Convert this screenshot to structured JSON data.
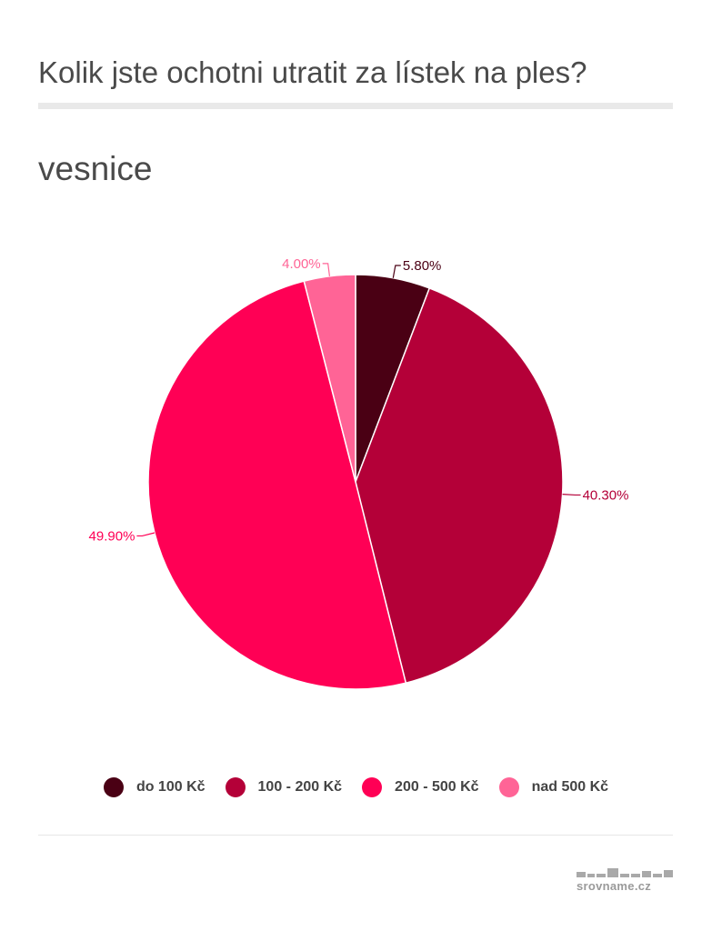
{
  "header": {
    "title": "Kolik jste ochotni utratit za lístek na ples?",
    "subtitle": "vesnice"
  },
  "chart_data": {
    "type": "pie",
    "categories": [
      "do 100 Kč",
      "100 - 200 Kč",
      "200 - 500 Kč",
      "nad 500 Kč"
    ],
    "values": [
      5.8,
      40.3,
      49.9,
      4.0
    ],
    "value_labels": [
      "5.80%",
      "40.30%",
      "49.90%",
      "4.00%"
    ],
    "colors": [
      "#4a0014",
      "#b40038",
      "#ff0055",
      "#ff6496"
    ],
    "start_angle": "12 o'clock, clockwise",
    "legend_position": "bottom"
  },
  "legend": {
    "items": [
      {
        "label": "do 100 Kč",
        "color": "#4a0014"
      },
      {
        "label": "100 - 200 Kč",
        "color": "#b40038"
      },
      {
        "label": "200 - 500 Kč",
        "color": "#ff0055"
      },
      {
        "label": "nad 500 Kč",
        "color": "#ff6496"
      }
    ]
  },
  "footer": {
    "brand": "srovname.cz"
  }
}
